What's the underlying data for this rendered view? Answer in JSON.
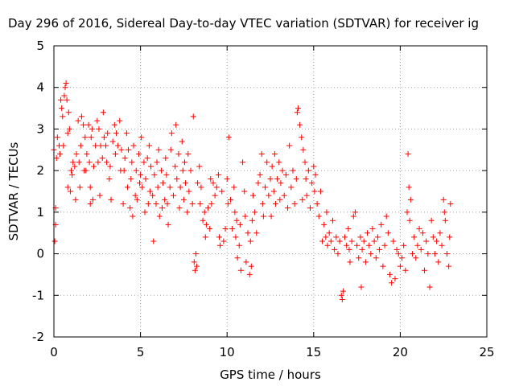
{
  "chart_data": {
    "type": "scatter",
    "title": "Day 296 of 2016, Sidereal Day-to-day VTEC variation (SDTVAR) for receiver ig",
    "xlabel": "GPS time / hours",
    "ylabel": "SDTVAR / TECUs",
    "xlim": [
      0,
      25
    ],
    "ylim": [
      -2,
      5
    ],
    "xticks": [
      0,
      5,
      10,
      15,
      20,
      25
    ],
    "yticks": [
      -2,
      -1,
      0,
      1,
      2,
      3,
      4,
      5
    ],
    "grid": true,
    "marker": "+",
    "series": [
      {
        "name": "SDTVAR",
        "color": "#ff0000",
        "points": [
          [
            0.0,
            2.5
          ],
          [
            0.05,
            0.3
          ],
          [
            0.1,
            0.7
          ],
          [
            0.1,
            1.1
          ],
          [
            0.15,
            2.3
          ],
          [
            0.2,
            2.8
          ],
          [
            0.3,
            2.6
          ],
          [
            0.35,
            2.4
          ],
          [
            0.4,
            3.7
          ],
          [
            0.45,
            3.5
          ],
          [
            0.5,
            3.3
          ],
          [
            0.55,
            2.6
          ],
          [
            0.6,
            3.8
          ],
          [
            0.65,
            4.0
          ],
          [
            0.7,
            4.1
          ],
          [
            0.75,
            3.7
          ],
          [
            0.8,
            2.9
          ],
          [
            0.8,
            1.6
          ],
          [
            0.85,
            3.4
          ],
          [
            0.9,
            3.0
          ],
          [
            0.95,
            1.5
          ],
          [
            1.0,
            2.0
          ],
          [
            1.05,
            1.9
          ],
          [
            1.1,
            2.2
          ],
          [
            1.2,
            2.1
          ],
          [
            1.25,
            1.3
          ],
          [
            1.3,
            2.4
          ],
          [
            1.4,
            3.2
          ],
          [
            1.45,
            2.2
          ],
          [
            1.5,
            1.6
          ],
          [
            1.55,
            2.6
          ],
          [
            1.6,
            3.3
          ],
          [
            1.7,
            3.1
          ],
          [
            1.75,
            2.0
          ],
          [
            1.8,
            2.8
          ],
          [
            1.85,
            2.0
          ],
          [
            1.9,
            2.4
          ],
          [
            2.0,
            3.1
          ],
          [
            2.05,
            2.2
          ],
          [
            2.1,
            1.6
          ],
          [
            2.1,
            1.2
          ],
          [
            2.15,
            2.8
          ],
          [
            2.2,
            3.0
          ],
          [
            2.25,
            1.3
          ],
          [
            2.3,
            2.1
          ],
          [
            2.4,
            2.6
          ],
          [
            2.5,
            3.2
          ],
          [
            2.55,
            2.2
          ],
          [
            2.6,
            3.0
          ],
          [
            2.65,
            1.4
          ],
          [
            2.7,
            2.6
          ],
          [
            2.8,
            2.3
          ],
          [
            2.85,
            3.4
          ],
          [
            2.9,
            2.8
          ],
          [
            3.0,
            2.6
          ],
          [
            3.05,
            2.2
          ],
          [
            3.1,
            2.9
          ],
          [
            3.2,
            1.8
          ],
          [
            3.25,
            2.1
          ],
          [
            3.3,
            1.3
          ],
          [
            3.4,
            2.7
          ],
          [
            3.5,
            3.1
          ],
          [
            3.55,
            2.4
          ],
          [
            3.6,
            2.9
          ],
          [
            3.7,
            2.6
          ],
          [
            3.8,
            3.2
          ],
          [
            3.85,
            2.0
          ],
          [
            3.9,
            2.5
          ],
          [
            4.0,
            1.2
          ],
          [
            4.05,
            2.0
          ],
          [
            4.1,
            2.3
          ],
          [
            4.2,
            2.9
          ],
          [
            4.25,
            1.6
          ],
          [
            4.3,
            2.5
          ],
          [
            4.4,
            1.1
          ],
          [
            4.45,
            1.8
          ],
          [
            4.5,
            2.2
          ],
          [
            4.55,
            0.9
          ],
          [
            4.6,
            2.6
          ],
          [
            4.7,
            1.4
          ],
          [
            4.75,
            2.0
          ],
          [
            4.8,
            1.3
          ],
          [
            4.9,
            2.4
          ],
          [
            4.95,
            1.7
          ],
          [
            5.0,
            1.9
          ],
          [
            5.05,
            2.8
          ],
          [
            5.1,
            1.6
          ],
          [
            5.2,
            2.2
          ],
          [
            5.25,
            1.0
          ],
          [
            5.3,
            1.8
          ],
          [
            5.4,
            2.3
          ],
          [
            5.45,
            1.2
          ],
          [
            5.5,
            2.6
          ],
          [
            5.55,
            1.5
          ],
          [
            5.6,
            2.1
          ],
          [
            5.7,
            1.4
          ],
          [
            5.75,
            0.3
          ],
          [
            5.8,
            1.9
          ],
          [
            5.9,
            1.2
          ],
          [
            5.95,
            2.2
          ],
          [
            6.0,
            1.6
          ],
          [
            6.05,
            2.5
          ],
          [
            6.1,
            0.9
          ],
          [
            6.2,
            2.0
          ],
          [
            6.25,
            1.1
          ],
          [
            6.3,
            1.7
          ],
          [
            6.4,
            1.3
          ],
          [
            6.45,
            2.3
          ],
          [
            6.5,
            1.9
          ],
          [
            6.55,
            1.2
          ],
          [
            6.6,
            0.7
          ],
          [
            6.7,
            1.6
          ],
          [
            6.75,
            2.5
          ],
          [
            6.8,
            2.9
          ],
          [
            6.9,
            1.4
          ],
          [
            7.0,
            2.1
          ],
          [
            7.05,
            3.1
          ],
          [
            7.1,
            1.8
          ],
          [
            7.2,
            2.4
          ],
          [
            7.25,
            1.1
          ],
          [
            7.3,
            1.6
          ],
          [
            7.4,
            2.7
          ],
          [
            7.45,
            2.0
          ],
          [
            7.5,
            1.3
          ],
          [
            7.55,
            2.2
          ],
          [
            7.6,
            1.7
          ],
          [
            7.7,
            1.0
          ],
          [
            7.75,
            2.4
          ],
          [
            7.8,
            1.5
          ],
          [
            7.9,
            2.0
          ],
          [
            8.0,
            1.2
          ],
          [
            8.05,
            3.3
          ],
          [
            8.1,
            -0.2
          ],
          [
            8.15,
            -0.4
          ],
          [
            8.2,
            0.0
          ],
          [
            8.25,
            -0.3
          ],
          [
            8.3,
            1.7
          ],
          [
            8.4,
            2.1
          ],
          [
            8.45,
            1.2
          ],
          [
            8.5,
            1.6
          ],
          [
            8.6,
            0.8
          ],
          [
            8.7,
            1.0
          ],
          [
            8.75,
            0.4
          ],
          [
            8.8,
            0.7
          ],
          [
            8.9,
            1.1
          ],
          [
            9.0,
            0.6
          ],
          [
            9.05,
            1.8
          ],
          [
            9.1,
            1.2
          ],
          [
            9.2,
            1.7
          ],
          [
            9.3,
            1.4
          ],
          [
            9.4,
            1.6
          ],
          [
            9.5,
            1.9
          ],
          [
            9.55,
            0.4
          ],
          [
            9.6,
            0.2
          ],
          [
            9.7,
            1.5
          ],
          [
            9.8,
            0.3
          ],
          [
            9.9,
            0.6
          ],
          [
            10.0,
            1.8
          ],
          [
            10.05,
            1.2
          ],
          [
            10.1,
            2.8
          ],
          [
            10.2,
            1.3
          ],
          [
            10.3,
            0.6
          ],
          [
            10.4,
            1.6
          ],
          [
            10.45,
            1.0
          ],
          [
            10.5,
            0.4
          ],
          [
            10.55,
            0.8
          ],
          [
            10.6,
            -0.1
          ],
          [
            10.7,
            0.2
          ],
          [
            10.75,
            0.7
          ],
          [
            10.8,
            -0.4
          ],
          [
            10.9,
            2.2
          ],
          [
            11.0,
            1.5
          ],
          [
            11.05,
            0.9
          ],
          [
            11.1,
            -0.2
          ],
          [
            11.2,
            0.5
          ],
          [
            11.3,
            -0.5
          ],
          [
            11.35,
            0.3
          ],
          [
            11.4,
            -0.3
          ],
          [
            11.45,
            0.8
          ],
          [
            11.5,
            1.4
          ],
          [
            11.6,
            1.0
          ],
          [
            11.7,
            0.5
          ],
          [
            11.8,
            1.7
          ],
          [
            11.9,
            1.9
          ],
          [
            12.0,
            2.4
          ],
          [
            12.05,
            1.2
          ],
          [
            12.1,
            0.9
          ],
          [
            12.2,
            1.6
          ],
          [
            12.3,
            2.2
          ],
          [
            12.4,
            1.4
          ],
          [
            12.5,
            1.8
          ],
          [
            12.55,
            0.9
          ],
          [
            12.6,
            2.1
          ],
          [
            12.7,
            1.5
          ],
          [
            12.75,
            2.4
          ],
          [
            12.8,
            1.2
          ],
          [
            12.9,
            1.8
          ],
          [
            13.0,
            2.2
          ],
          [
            13.05,
            1.3
          ],
          [
            13.1,
            1.7
          ],
          [
            13.2,
            2.0
          ],
          [
            13.3,
            1.4
          ],
          [
            13.4,
            1.9
          ],
          [
            13.5,
            1.1
          ],
          [
            13.6,
            2.6
          ],
          [
            13.7,
            1.6
          ],
          [
            13.8,
            2.0
          ],
          [
            13.9,
            1.2
          ],
          [
            14.0,
            1.8
          ],
          [
            14.05,
            3.4
          ],
          [
            14.1,
            3.5
          ],
          [
            14.2,
            3.1
          ],
          [
            14.3,
            2.8
          ],
          [
            14.35,
            1.3
          ],
          [
            14.4,
            2.5
          ],
          [
            14.5,
            2.2
          ],
          [
            14.55,
            1.8
          ],
          [
            14.6,
            1.4
          ],
          [
            14.7,
            2.0
          ],
          [
            14.8,
            1.1
          ],
          [
            14.9,
            1.7
          ],
          [
            15.0,
            2.1
          ],
          [
            15.05,
            1.5
          ],
          [
            15.1,
            1.9
          ],
          [
            15.2,
            1.2
          ],
          [
            15.3,
            0.9
          ],
          [
            15.4,
            1.5
          ],
          [
            15.5,
            0.3
          ],
          [
            15.6,
            0.7
          ],
          [
            15.7,
            0.4
          ],
          [
            15.75,
            1.0
          ],
          [
            15.8,
            0.2
          ],
          [
            15.9,
            0.5
          ],
          [
            16.0,
            0.3
          ],
          [
            16.1,
            0.8
          ],
          [
            16.2,
            0.1
          ],
          [
            16.3,
            0.4
          ],
          [
            16.4,
            0.0
          ],
          [
            16.5,
            0.3
          ],
          [
            16.6,
            -1.0
          ],
          [
            16.65,
            -1.1
          ],
          [
            16.7,
            -0.9
          ],
          [
            16.8,
            0.4
          ],
          [
            16.9,
            0.2
          ],
          [
            17.0,
            0.6
          ],
          [
            17.05,
            0.1
          ],
          [
            17.1,
            -0.2
          ],
          [
            17.2,
            0.3
          ],
          [
            17.3,
            0.9
          ],
          [
            17.4,
            1.0
          ],
          [
            17.5,
            0.2
          ],
          [
            17.6,
            -0.1
          ],
          [
            17.7,
            0.4
          ],
          [
            17.75,
            -0.8
          ],
          [
            17.8,
            0.1
          ],
          [
            17.9,
            0.3
          ],
          [
            18.0,
            -0.2
          ],
          [
            18.1,
            0.5
          ],
          [
            18.2,
            0.2
          ],
          [
            18.3,
            0.0
          ],
          [
            18.4,
            0.6
          ],
          [
            18.5,
            0.3
          ],
          [
            18.6,
            -0.1
          ],
          [
            18.7,
            0.4
          ],
          [
            18.8,
            0.1
          ],
          [
            18.9,
            0.7
          ],
          [
            19.0,
            -0.3
          ],
          [
            19.1,
            0.2
          ],
          [
            19.2,
            0.9
          ],
          [
            19.3,
            0.5
          ],
          [
            19.4,
            -0.5
          ],
          [
            19.5,
            -0.7
          ],
          [
            19.6,
            0.3
          ],
          [
            19.7,
            -0.6
          ],
          [
            19.8,
            0.1
          ],
          [
            19.9,
            0.0
          ],
          [
            20.0,
            -0.3
          ],
          [
            20.1,
            -0.1
          ],
          [
            20.2,
            0.2
          ],
          [
            20.3,
            -0.4
          ],
          [
            20.4,
            1.0
          ],
          [
            20.45,
            2.4
          ],
          [
            20.5,
            1.6
          ],
          [
            20.55,
            0.8
          ],
          [
            20.6,
            1.3
          ],
          [
            20.7,
            0.0
          ],
          [
            20.8,
            0.4
          ],
          [
            20.9,
            -0.1
          ],
          [
            21.0,
            0.2
          ],
          [
            21.1,
            0.6
          ],
          [
            21.2,
            0.1
          ],
          [
            21.3,
            0.5
          ],
          [
            21.4,
            -0.4
          ],
          [
            21.5,
            0.3
          ],
          [
            21.6,
            0.0
          ],
          [
            21.7,
            -0.8
          ],
          [
            21.8,
            0.8
          ],
          [
            21.9,
            0.4
          ],
          [
            22.0,
            0.0
          ],
          [
            22.1,
            0.3
          ],
          [
            22.2,
            -0.2
          ],
          [
            22.3,
            0.5
          ],
          [
            22.4,
            0.2
          ],
          [
            22.5,
            1.3
          ],
          [
            22.55,
            1.0
          ],
          [
            22.6,
            0.8
          ],
          [
            22.7,
            0.0
          ],
          [
            22.8,
            -0.3
          ],
          [
            22.85,
            0.4
          ],
          [
            22.9,
            1.2
          ]
        ]
      }
    ]
  }
}
